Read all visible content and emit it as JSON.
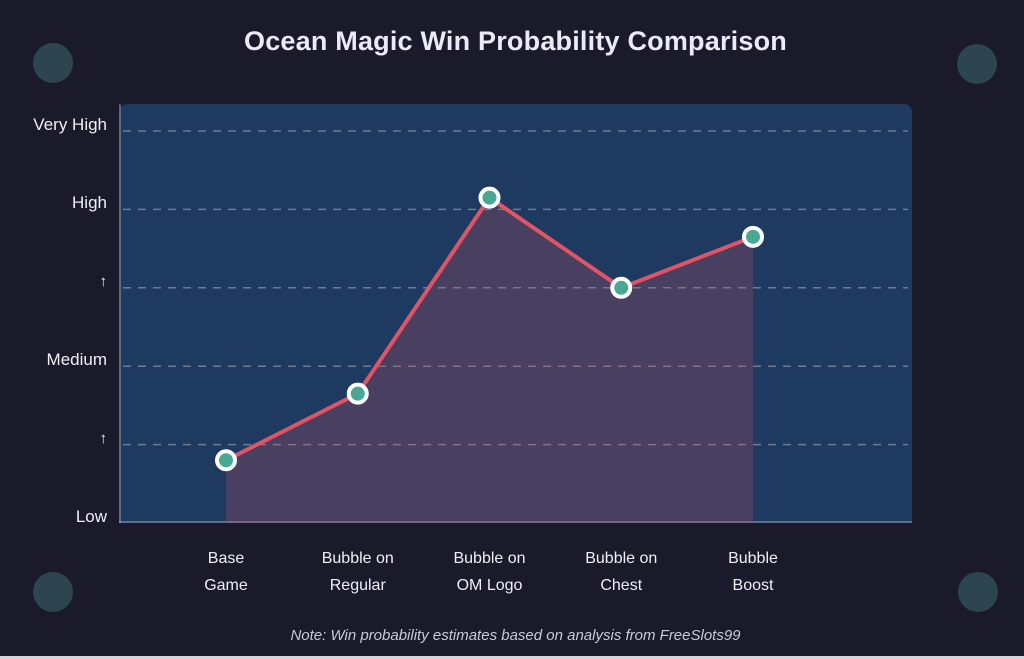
{
  "header": {
    "title": "Ocean Magic Win Probability Comparison"
  },
  "footer": {
    "note": "Note: Win probability estimates based on analysis from FreeSlots99"
  },
  "chart_data": {
    "type": "line",
    "title": "Ocean Magic Win Probability Comparison",
    "categories": [
      "Base Game",
      "Bubble on Regular",
      "Bubble on OM Logo",
      "Bubble on Chest",
      "Bubble Boost"
    ],
    "category_label_lines": [
      [
        "Base",
        "Game"
      ],
      [
        "Bubble on",
        "Regular"
      ],
      [
        "Bubble on",
        "OM Logo"
      ],
      [
        "Bubble on",
        "Chest"
      ],
      [
        "Bubble",
        "Boost"
      ]
    ],
    "series": [
      {
        "name": "Win probability",
        "values": [
          0.8,
          1.65,
          4.15,
          3.0,
          3.65
        ]
      }
    ],
    "y_axis": {
      "labels_top_to_bottom": [
        "Very High",
        "High",
        "↑",
        "Medium",
        "↑",
        "Low"
      ],
      "label_values": [
        5,
        4,
        3,
        2,
        1,
        0
      ],
      "gridline_values": [
        5,
        4,
        3,
        2,
        1
      ],
      "range": [
        0,
        5
      ],
      "named_levels": {
        "Low": 0,
        "Medium": 2,
        "High": 4,
        "Very High": 5
      }
    },
    "xlabel": "",
    "ylabel": "",
    "legend": "none",
    "grid": "horizontal-dashed",
    "area_fill": true,
    "marker": "circle",
    "annotation": "Note: Win probability estimates based on analysis from FreeSlots99"
  },
  "colors": {
    "page_bg": "#1a1a2a",
    "plot_bg": "#1e3a61",
    "line": "#e25465",
    "area_fill": "rgba(224,82,101,0.22)",
    "marker_fill": "#47a893",
    "marker_border": "#ffffff",
    "gridline": "rgba(175,175,195,0.55)",
    "axis_line": "rgba(170,170,195,0.45)",
    "title_text": "#eceaf6",
    "axis_text": "#eef0f8",
    "note_text": "#c9c9da",
    "corner_circle": "#2d454e",
    "bottom_strip": "#d6d4dc"
  }
}
